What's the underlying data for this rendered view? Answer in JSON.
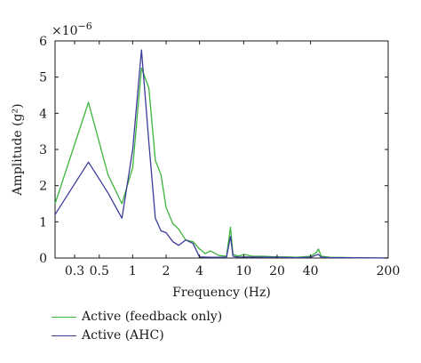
{
  "chart_data": {
    "type": "line",
    "xlabel": "Frequency (Hz)",
    "ylabel": "Amplitude (g²)",
    "y_multiplier_label": "×10",
    "y_multiplier_exp": "−6",
    "xscale": "log",
    "xlim": [
      0.2,
      200
    ],
    "ylim": [
      0,
      6
    ],
    "x_ticks": [
      {
        "value": 0.3,
        "label": "0.3"
      },
      {
        "value": 0.5,
        "label": "0.5"
      },
      {
        "value": 1,
        "label": "1"
      },
      {
        "value": 2,
        "label": "2"
      },
      {
        "value": 4,
        "label": "4"
      },
      {
        "value": 10,
        "label": "10"
      },
      {
        "value": 20,
        "label": "20"
      },
      {
        "value": 40,
        "label": "40"
      },
      {
        "value": 200,
        "label": "200"
      }
    ],
    "y_ticks": [
      {
        "value": 0,
        "label": "0"
      },
      {
        "value": 1,
        "label": "1"
      },
      {
        "value": 2,
        "label": "2"
      },
      {
        "value": 3,
        "label": "3"
      },
      {
        "value": 4,
        "label": "4"
      },
      {
        "value": 5,
        "label": "5"
      },
      {
        "value": 6,
        "label": "6"
      }
    ],
    "grid": false,
    "legend_position": "bottom-left, outside plot",
    "series": [
      {
        "name": "Active (feedback only)",
        "color": "#3cb43c",
        "x": [
          0.2,
          0.4,
          0.6,
          0.8,
          1.0,
          1.2,
          1.4,
          1.6,
          1.8,
          2.0,
          2.3,
          2.6,
          3.0,
          3.5,
          4.0,
          4.5,
          5.0,
          6.0,
          7.0,
          7.6,
          8.0,
          9.0,
          10,
          12,
          15,
          20,
          25,
          30,
          40,
          45,
          47,
          50,
          60,
          100,
          200
        ],
        "y": [
          1.5,
          4.3,
          2.3,
          1.5,
          2.5,
          5.25,
          4.7,
          2.7,
          2.3,
          1.4,
          0.95,
          0.8,
          0.5,
          0.45,
          0.25,
          0.12,
          0.2,
          0.07,
          0.05,
          0.85,
          0.1,
          0.05,
          0.1,
          0.05,
          0.05,
          0.03,
          0.03,
          0.02,
          0.05,
          0.15,
          0.25,
          0.05,
          0.02,
          0.01,
          0.0
        ]
      },
      {
        "name": "Active (AHC)",
        "color": "#3c3c9a",
        "x": [
          0.2,
          0.4,
          0.6,
          0.8,
          1.0,
          1.2,
          1.4,
          1.6,
          1.8,
          2.0,
          2.3,
          2.6,
          3.0,
          3.5,
          4.0,
          5.0,
          6.0,
          7.0,
          7.6,
          8.0,
          9.0,
          10,
          15,
          20,
          30,
          40,
          47,
          50,
          60,
          100,
          200
        ],
        "y": [
          1.2,
          2.65,
          1.8,
          1.1,
          3.0,
          5.75,
          3.2,
          1.1,
          0.75,
          0.7,
          0.45,
          0.35,
          0.5,
          0.4,
          0.03,
          0.02,
          0.02,
          0.02,
          0.6,
          0.05,
          0.02,
          0.03,
          0.02,
          0.02,
          0.01,
          0.02,
          0.1,
          0.02,
          0.01,
          0.01,
          0.0
        ]
      }
    ]
  }
}
